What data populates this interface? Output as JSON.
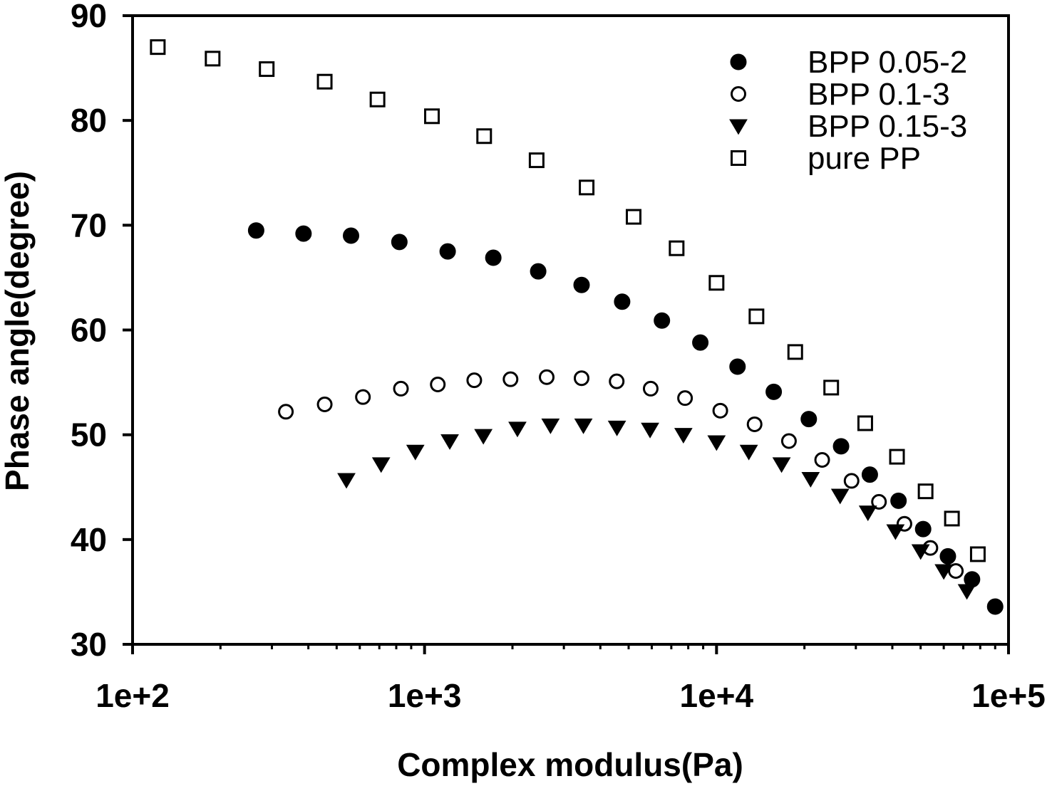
{
  "chart_data": {
    "type": "scatter",
    "xlabel": "Complex modulus(Pa)",
    "ylabel": "Phase angle(degree)",
    "x_scale": "log",
    "xlim": [
      100,
      100000
    ],
    "ylim": [
      30,
      90
    ],
    "x_ticks": [
      "1e+2",
      "1e+3",
      "1e+4",
      "1e+5"
    ],
    "y_ticks": [
      "30",
      "40",
      "50",
      "60",
      "70",
      "80",
      "90"
    ],
    "grid": false,
    "legend_position": "top-right",
    "series": [
      {
        "name": "BPP 0.05-2",
        "marker": "filled-circle",
        "color": "#000000",
        "points": [
          [
            265,
            69.5
          ],
          [
            385,
            69.2
          ],
          [
            560,
            69.0
          ],
          [
            820,
            68.4
          ],
          [
            1200,
            67.5
          ],
          [
            1720,
            66.9
          ],
          [
            2450,
            65.6
          ],
          [
            3450,
            64.3
          ],
          [
            4750,
            62.7
          ],
          [
            6500,
            60.9
          ],
          [
            8800,
            58.8
          ],
          [
            11800,
            56.5
          ],
          [
            15700,
            54.1
          ],
          [
            20700,
            51.5
          ],
          [
            26700,
            48.9
          ],
          [
            33500,
            46.2
          ],
          [
            42000,
            43.7
          ],
          [
            51000,
            41.0
          ],
          [
            62000,
            38.4
          ],
          [
            75000,
            36.2
          ],
          [
            90000,
            33.6
          ]
        ]
      },
      {
        "name": "BPP 0.1-3",
        "marker": "open-circle",
        "color": "#000000",
        "points": [
          [
            335,
            52.2
          ],
          [
            455,
            52.9
          ],
          [
            615,
            53.6
          ],
          [
            830,
            54.4
          ],
          [
            1110,
            54.8
          ],
          [
            1480,
            55.2
          ],
          [
            1970,
            55.3
          ],
          [
            2620,
            55.5
          ],
          [
            3450,
            55.4
          ],
          [
            4550,
            55.1
          ],
          [
            5950,
            54.4
          ],
          [
            7800,
            53.5
          ],
          [
            10300,
            52.3
          ],
          [
            13500,
            51.0
          ],
          [
            17700,
            49.4
          ],
          [
            23000,
            47.6
          ],
          [
            29000,
            45.6
          ],
          [
            36000,
            43.6
          ],
          [
            44000,
            41.5
          ],
          [
            54000,
            39.2
          ],
          [
            66000,
            37.0
          ]
        ]
      },
      {
        "name": "BPP 0.15-3",
        "marker": "filled-triangle-down",
        "color": "#000000",
        "points": [
          [
            540,
            45.7
          ],
          [
            710,
            47.2
          ],
          [
            930,
            48.4
          ],
          [
            1220,
            49.4
          ],
          [
            1590,
            49.9
          ],
          [
            2080,
            50.6
          ],
          [
            2700,
            50.9
          ],
          [
            3500,
            50.9
          ],
          [
            4560,
            50.7
          ],
          [
            5920,
            50.5
          ],
          [
            7700,
            50.0
          ],
          [
            10000,
            49.3
          ],
          [
            12900,
            48.4
          ],
          [
            16700,
            47.2
          ],
          [
            21000,
            45.8
          ],
          [
            26500,
            44.2
          ],
          [
            33000,
            42.6
          ],
          [
            41000,
            40.8
          ],
          [
            50000,
            38.9
          ],
          [
            60000,
            37.0
          ],
          [
            72000,
            35.1
          ]
        ]
      },
      {
        "name": "pure PP",
        "marker": "open-square",
        "color": "#000000",
        "points": [
          [
            122,
            87.0
          ],
          [
            188,
            85.9
          ],
          [
            288,
            84.9
          ],
          [
            455,
            83.7
          ],
          [
            690,
            82.0
          ],
          [
            1060,
            80.4
          ],
          [
            1600,
            78.5
          ],
          [
            2420,
            76.2
          ],
          [
            3590,
            73.6
          ],
          [
            5200,
            70.8
          ],
          [
            7300,
            67.8
          ],
          [
            10000,
            64.5
          ],
          [
            13700,
            61.3
          ],
          [
            18600,
            57.9
          ],
          [
            24700,
            54.5
          ],
          [
            32300,
            51.1
          ],
          [
            41500,
            47.9
          ],
          [
            52000,
            44.6
          ],
          [
            64000,
            42.0
          ],
          [
            78500,
            38.6
          ]
        ]
      }
    ]
  }
}
